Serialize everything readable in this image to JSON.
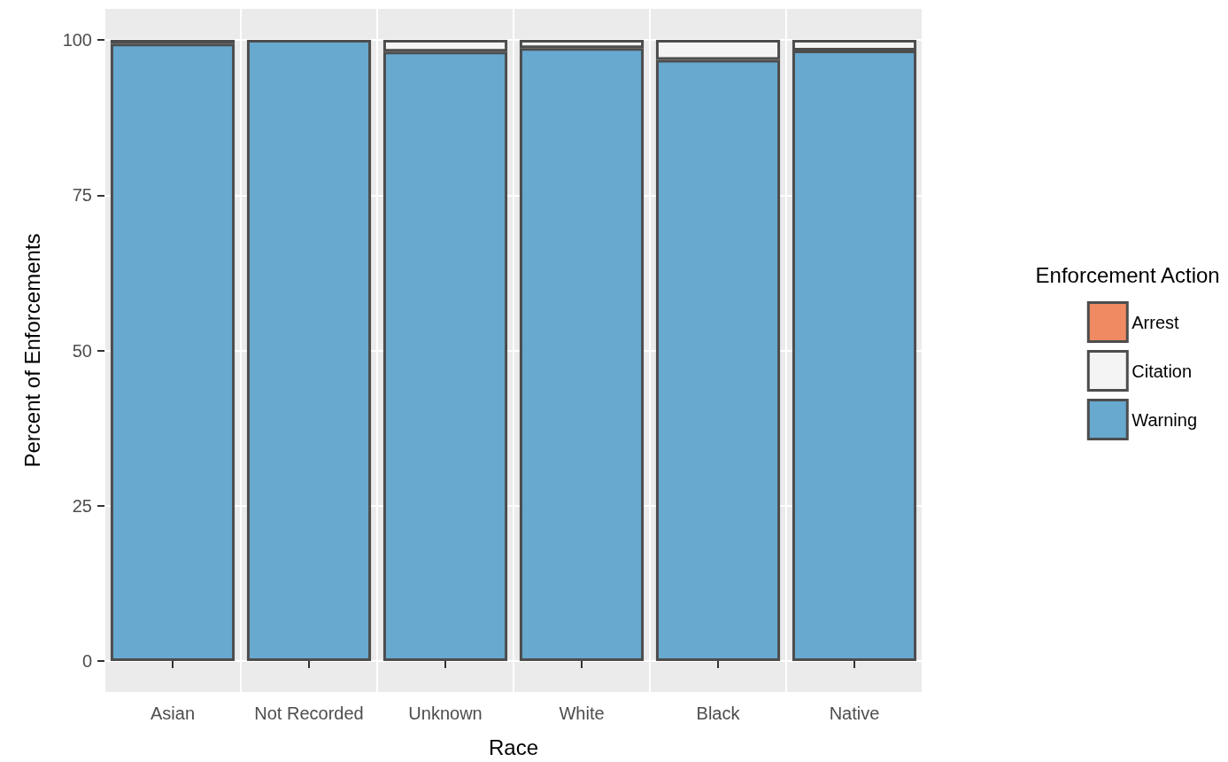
{
  "chart_data": {
    "type": "bar",
    "stacked": true,
    "xlabel": "Race",
    "ylabel": "Percent of Enforcements",
    "legend_title": "Enforcement Action",
    "legend": "right",
    "grid": true,
    "categories": [
      "Asian",
      "Not Recorded",
      "Unknown",
      "White",
      "Black",
      "Native"
    ],
    "ylim": [
      -5,
      105
    ],
    "yticks": [
      0,
      25,
      50,
      75,
      100
    ],
    "series": [
      {
        "name": "Warning",
        "color": "#67a9cf",
        "values": [
          99.4,
          100,
          98.1,
          98.7,
          96.8,
          98.3
        ]
      },
      {
        "name": "Citation",
        "color": "#f4f4f4",
        "values": [
          0.6,
          null,
          1.9,
          1.3,
          3.2,
          1.7
        ]
      },
      {
        "name": "Arrest",
        "color": "#ef8a62",
        "values": [
          null,
          null,
          null,
          null,
          null,
          null
        ]
      }
    ]
  }
}
